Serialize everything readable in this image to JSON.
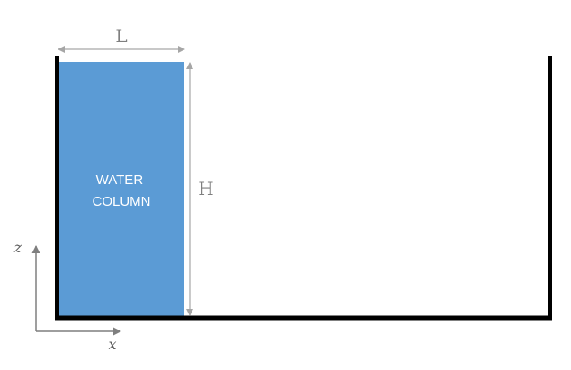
{
  "diagram": {
    "water_column_label": [
      "WATER",
      "COLUMN"
    ],
    "length_label": "L",
    "height_label": "H",
    "z_axis_label": "z",
    "x_axis_label": "x"
  },
  "colors": {
    "water": "#5b9bd5",
    "tank_wall": "#000000",
    "dimension_line": "#a6a6a6",
    "axis": "#7f7f7f"
  }
}
